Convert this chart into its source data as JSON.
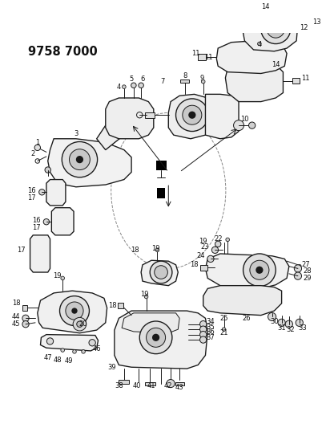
{
  "title": "9758 7000",
  "bg_color": "#ffffff",
  "fig_width": 4.12,
  "fig_height": 5.33,
  "dpi": 100,
  "line_color": "#1a1a1a",
  "label_color": "#111111",
  "label_fontsize": 6.0,
  "title_fontsize": 10.5,
  "lw": 0.7
}
